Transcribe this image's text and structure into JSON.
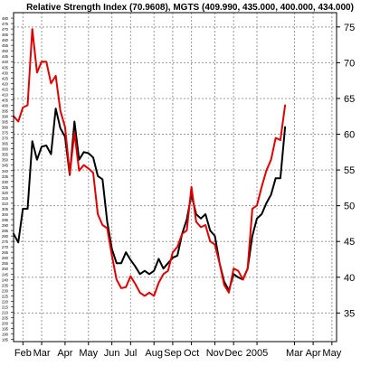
{
  "chart_data": {
    "type": "line",
    "title": "Relative Strength Index (70.9608), MGTS (409.990, 435.000, 400.000, 434.000)",
    "y2_range": [
      31,
      77
    ],
    "y2_ticks": [
      75,
      70,
      65,
      60,
      55,
      50,
      45,
      40,
      35
    ],
    "y2_tick_labels": [
      "75",
      "70",
      "65",
      "60",
      "55",
      "50",
      "45",
      "40",
      "35"
    ],
    "y1_range": [
      183,
      485
    ],
    "y1_tick_labels": [
      "480",
      "475",
      "470",
      "465",
      "460",
      "455",
      "450",
      "445",
      "440",
      "435",
      "430",
      "425",
      "420",
      "415",
      "410",
      "405",
      "400",
      "395",
      "390",
      "385",
      "380",
      "375",
      "370",
      "365",
      "360",
      "355",
      "350",
      "345",
      "340",
      "335",
      "330",
      "325",
      "320",
      "315",
      "310",
      "305",
      "300",
      "295",
      "290",
      "285",
      "280",
      "275",
      "270",
      "265",
      "260",
      "255",
      "250",
      "245",
      "240",
      "235",
      "230",
      "225",
      "220",
      "215",
      "210",
      "205",
      "200",
      "195",
      "190",
      "185"
    ],
    "x_range": [
      0,
      69
    ],
    "x_ticks": [
      {
        "label": "Feb",
        "x": 2
      },
      {
        "label": "Mar",
        "x": 6
      },
      {
        "label": "Apr",
        "x": 11
      },
      {
        "label": "May",
        "x": 16
      },
      {
        "label": "Jun",
        "x": 21
      },
      {
        "label": "Jul",
        "x": 25
      },
      {
        "label": "Aug",
        "x": 30
      },
      {
        "label": "Sep",
        "x": 34
      },
      {
        "label": "Oct",
        "x": 38
      },
      {
        "label": "Nov",
        "x": 43
      },
      {
        "label": "Dec",
        "x": 47
      },
      {
        "label": "2005",
        "x": 52
      },
      {
        "label": "Mar",
        "x": 60
      },
      {
        "label": "Apr",
        "x": 64
      },
      {
        "label": "May",
        "x": 68
      }
    ],
    "grid": "dashed",
    "series": [
      {
        "color": "#000000",
        "axis": "left",
        "x": [
          0,
          1,
          2,
          3,
          4,
          5,
          6,
          7,
          8,
          9,
          10,
          11,
          12,
          13,
          14,
          15,
          16,
          17,
          18,
          19,
          20,
          21,
          22,
          23,
          24,
          25,
          26,
          27,
          28,
          29,
          30,
          31,
          32,
          33,
          34,
          35,
          36,
          37,
          38,
          39,
          40,
          41,
          42,
          43,
          44,
          45,
          46,
          47,
          48,
          49,
          50,
          51,
          52,
          53,
          54,
          55,
          56,
          57,
          58
        ],
        "values": [
          282,
          274,
          305,
          305,
          367,
          350,
          362,
          363,
          355,
          397,
          379,
          371,
          336,
          385,
          350,
          357,
          356,
          352,
          335,
          332,
          293,
          268,
          255,
          255,
          265,
          258,
          252,
          245,
          248,
          245,
          248,
          259,
          250,
          255,
          260,
          262,
          282,
          295,
          318,
          300,
          296,
          300,
          285,
          280,
          255,
          238,
          230,
          245,
          242,
          240,
          250,
          280,
          296,
          300,
          310,
          318,
          333,
          333,
          380
        ],
        "stroke_width": 2
      },
      {
        "color": "#e00000",
        "axis": "left",
        "x": [
          0,
          1,
          2,
          3,
          4,
          5,
          6,
          7,
          8,
          9,
          10,
          11,
          12,
          13,
          14,
          15,
          16,
          17,
          18,
          19,
          20,
          21,
          22,
          23,
          24,
          25,
          26,
          27,
          28,
          29,
          30,
          31,
          32,
          33,
          34,
          35,
          36,
          37,
          38,
          39,
          40,
          41,
          42,
          43,
          44,
          45,
          46,
          47,
          48,
          49,
          50,
          51,
          52,
          53,
          54,
          55,
          56,
          57,
          58
        ],
        "values": [
          390,
          385,
          398,
          400,
          470,
          430,
          440,
          440,
          420,
          427,
          395,
          380,
          337,
          375,
          340,
          345,
          342,
          338,
          300,
          290,
          287,
          262,
          240,
          232,
          233,
          243,
          236,
          228,
          225,
          228,
          225,
          237,
          245,
          248,
          265,
          270,
          282,
          285,
          325,
          293,
          288,
          290,
          275,
          272,
          255,
          235,
          228,
          250,
          248,
          240,
          250,
          305,
          308,
          325,
          340,
          350,
          370,
          368,
          400
        ],
        "stroke_width": 2
      }
    ]
  }
}
